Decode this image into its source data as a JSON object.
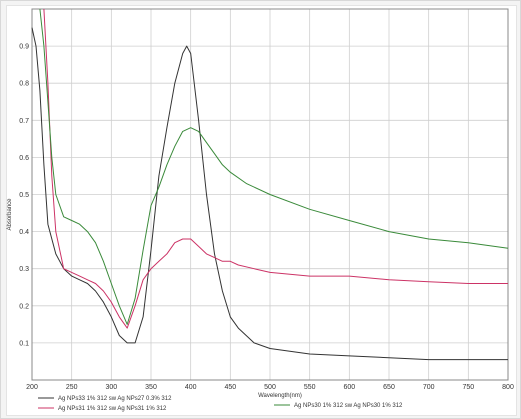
{
  "chart_data": {
    "type": "line",
    "xlabel": "Wavelength(nm)",
    "ylabel": "Absorbance",
    "xlim": [
      200,
      800
    ],
    "ylim": [
      0,
      1.0
    ],
    "x_ticks": [
      200,
      250,
      300,
      350,
      400,
      450,
      500,
      550,
      600,
      650,
      700,
      750,
      800
    ],
    "y_ticks": [
      0.1,
      0.2,
      0.3,
      0.4,
      0.5,
      0.6,
      0.7,
      0.8,
      0.9
    ],
    "grid": true,
    "legend_position": "bottom",
    "series": [
      {
        "name": "Ag NPs33 1% 312 sw Ag NPs27 0.3% 312",
        "color": "#333333",
        "x": [
          200,
          205,
          210,
          215,
          220,
          230,
          240,
          250,
          260,
          270,
          280,
          290,
          300,
          310,
          320,
          330,
          340,
          350,
          360,
          370,
          380,
          390,
          395,
          400,
          410,
          420,
          430,
          440,
          450,
          460,
          470,
          480,
          500,
          550,
          600,
          650,
          700,
          750,
          800
        ],
        "y": [
          0.95,
          0.9,
          0.78,
          0.58,
          0.42,
          0.34,
          0.3,
          0.28,
          0.27,
          0.26,
          0.24,
          0.21,
          0.17,
          0.12,
          0.1,
          0.1,
          0.17,
          0.35,
          0.55,
          0.68,
          0.8,
          0.88,
          0.9,
          0.88,
          0.7,
          0.5,
          0.34,
          0.24,
          0.17,
          0.14,
          0.12,
          0.1,
          0.085,
          0.07,
          0.065,
          0.06,
          0.055,
          0.055,
          0.055
        ]
      },
      {
        "name": "Ag NPs31 1% 312 sw Ag NPs31 1% 312",
        "color": "#cc3366",
        "x": [
          215,
          220,
          225,
          230,
          240,
          250,
          260,
          270,
          280,
          290,
          300,
          310,
          320,
          330,
          340,
          350,
          360,
          370,
          380,
          390,
          400,
          410,
          420,
          430,
          440,
          450,
          460,
          480,
          500,
          550,
          600,
          650,
          700,
          750,
          800
        ],
        "y": [
          1.0,
          0.8,
          0.55,
          0.4,
          0.3,
          0.29,
          0.28,
          0.27,
          0.26,
          0.24,
          0.21,
          0.17,
          0.14,
          0.2,
          0.27,
          0.3,
          0.32,
          0.34,
          0.37,
          0.38,
          0.38,
          0.36,
          0.34,
          0.33,
          0.32,
          0.32,
          0.31,
          0.3,
          0.29,
          0.28,
          0.28,
          0.27,
          0.265,
          0.26,
          0.26
        ]
      },
      {
        "name": "Ag NPs30 1% 312 sw Ag NPs30 1% 312",
        "color": "#3a8a3a",
        "x": [
          210,
          215,
          220,
          225,
          230,
          240,
          250,
          260,
          270,
          280,
          290,
          300,
          310,
          320,
          330,
          340,
          350,
          360,
          370,
          380,
          390,
          400,
          410,
          420,
          430,
          440,
          450,
          470,
          500,
          550,
          600,
          650,
          700,
          750,
          800
        ],
        "y": [
          1.0,
          0.9,
          0.75,
          0.6,
          0.5,
          0.44,
          0.43,
          0.42,
          0.4,
          0.37,
          0.32,
          0.26,
          0.2,
          0.15,
          0.22,
          0.35,
          0.47,
          0.52,
          0.58,
          0.63,
          0.67,
          0.68,
          0.67,
          0.64,
          0.61,
          0.58,
          0.56,
          0.53,
          0.5,
          0.46,
          0.43,
          0.4,
          0.38,
          0.37,
          0.355
        ]
      }
    ]
  }
}
